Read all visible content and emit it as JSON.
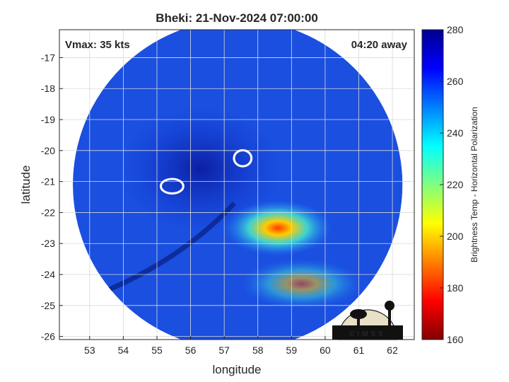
{
  "chart_data": {
    "type": "heatmap",
    "title": "Bheki: 21-Nov-2024 07:00:00",
    "xlabel": "longitude",
    "ylabel": "latitude",
    "xlim": [
      52.1,
      62.65
    ],
    "ylim": [
      -26.1,
      -16.1
    ],
    "x_ticks": [
      53,
      54,
      55,
      56,
      57,
      58,
      59,
      60,
      61,
      62
    ],
    "y_ticks": [
      -17,
      -18,
      -19,
      -20,
      -21,
      -22,
      -23,
      -24,
      -25,
      -26
    ],
    "grid": true,
    "annotations": {
      "vmax": "Vmax: 35 kts",
      "time_away": "04:20 away"
    },
    "colorbar": {
      "label": "Brightness Temp - Horizontal Polarization",
      "min": 160,
      "max": 280,
      "ticks": [
        280,
        260,
        240,
        220,
        200,
        180,
        160
      ],
      "colormap": "jet"
    },
    "swath": {
      "center": [
        57.4,
        -21.1
      ],
      "radius_deg": 4.9
    },
    "features": [
      {
        "type": "contour",
        "center": [
          55.45,
          -21.15
        ],
        "size": [
          0.7,
          0.5
        ],
        "color": "#ffffff"
      },
      {
        "type": "contour",
        "center": [
          57.55,
          -20.25
        ],
        "size": [
          0.55,
          0.55
        ],
        "color": "#ffffff"
      },
      {
        "type": "low_tb_region",
        "approx_min_value": 190,
        "center": [
          58.6,
          -22.5
        ]
      }
    ],
    "logo_text": "CIMSS"
  }
}
